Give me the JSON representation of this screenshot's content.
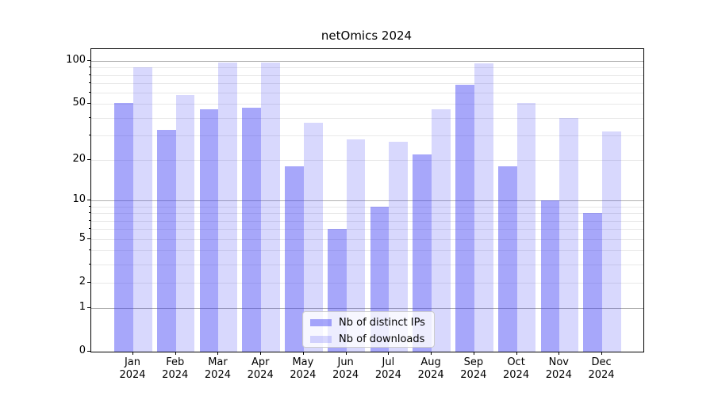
{
  "chart_data": {
    "type": "bar",
    "title": "netOmics 2024",
    "categories": [
      "Jan 2024",
      "Feb 2024",
      "Mar 2024",
      "Apr 2024",
      "May 2024",
      "Jun 2024",
      "Jul 2024",
      "Aug 2024",
      "Sep 2024",
      "Oct 2024",
      "Nov 2024",
      "Dec 2024"
    ],
    "x_tick_line1": [
      "Jan",
      "Feb",
      "Mar",
      "Apr",
      "May",
      "Jun",
      "Jul",
      "Aug",
      "Sep",
      "Oct",
      "Nov",
      "Dec"
    ],
    "x_tick_line2": "2024",
    "series": [
      {
        "name": "Nb of distinct IPs",
        "color": "rgba(60,60,245,0.45)",
        "values": [
          51,
          33,
          46,
          47,
          18,
          6,
          9,
          22,
          68,
          18,
          10,
          8
        ]
      },
      {
        "name": "Nb of downloads",
        "color": "rgba(60,60,245,0.20)",
        "values": [
          90,
          58,
          98,
          97,
          37,
          28,
          27,
          46,
          96,
          51,
          40,
          32
        ]
      }
    ],
    "y_axis": {
      "scale": "pseudo-log: position proportional to log10(1+y)",
      "tick_values": [
        100,
        50,
        20,
        10,
        5,
        2,
        1,
        0
      ],
      "tick_labels": [
        "100",
        "50",
        "20",
        "10",
        "5",
        "2",
        "1",
        "0"
      ],
      "unlabeled_minor_tick_values": [
        3,
        4,
        6,
        7,
        8,
        9,
        30,
        40,
        60,
        70,
        80,
        90
      ],
      "major_grid_values": [
        1,
        10,
        100
      ],
      "minor_grid_values": [
        2,
        3,
        4,
        5,
        6,
        7,
        8,
        9,
        20,
        30,
        40,
        50,
        60,
        70,
        80,
        90
      ],
      "ylim": [
        0,
        121
      ]
    },
    "legend": {
      "entries": [
        "Nb of distinct IPs",
        "Nb of downloads"
      ],
      "position": "lower center"
    },
    "grid": true,
    "colors": {
      "bar_ips": "rgba(60,60,245,0.45)",
      "bar_downloads": "rgba(60,60,245,0.20)",
      "grid_major": "#b0b0b0",
      "grid_minor": "#e8e8e8",
      "spine": "#000000",
      "legend_border": "#cccccc",
      "legend_background": "rgba(255,255,255,0.8)",
      "text": "#000000"
    }
  }
}
